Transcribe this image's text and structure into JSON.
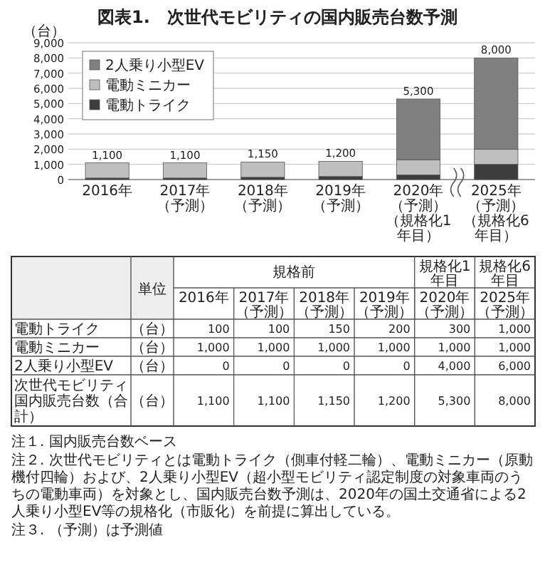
{
  "chart_data": [
    {
      "type": "bar",
      "stacked": true,
      "title": "図表1.　次世代モビリティの国内販売台数予測",
      "ylabel": "（台）",
      "categories": [
        "2016年",
        "2017年（予測）",
        "2018年（予測）",
        "2019年（予測）",
        "2020年（予測）（規格化1年目）",
        "2025年（予測）（規格化6年目）"
      ],
      "series": [
        {
          "name": "電動トライク",
          "color": "#3c3c3c",
          "values": [
            100,
            100,
            150,
            200,
            300,
            1000
          ]
        },
        {
          "name": "電動ミニカー",
          "color": "#bfbfbf",
          "values": [
            1000,
            1000,
            1000,
            1000,
            1000,
            1000
          ]
        },
        {
          "name": "2人乗り小型EV",
          "color": "#808080",
          "values": [
            0,
            0,
            0,
            0,
            4000,
            6000
          ]
        }
      ],
      "totals": [
        "1,100",
        "1,100",
        "1,150",
        "1,200",
        "5,300",
        "8,000"
      ],
      "ylim": [
        0,
        9000
      ],
      "yticks": [
        0,
        {
          "value": 1000,
          "label": "1,000"
        },
        {
          "value": 2000,
          "label": "2,000"
        },
        {
          "value": 3000,
          "label": "3,000"
        },
        {
          "value": 4000,
          "label": "4,000"
        },
        {
          "value": 5000,
          "label": "5,000"
        },
        {
          "value": 6000,
          "label": "6,000"
        },
        {
          "value": 7000,
          "label": "7,000"
        },
        {
          "value": 8000,
          "label": "8,000"
        },
        {
          "value": 9000,
          "label": "9,000"
        }
      ],
      "grid": "y",
      "legend": "top left"
    },
    {
      "type": "heatmap",
      "categories": [
        "2016年",
        "2017年（予測）",
        "2018年（予測）",
        "2019年（予測）",
        "2020年（予測）",
        "2025年（予測）"
      ],
      "y_categories": [
        "電動トライク",
        "電動ミニカー",
        "2人乗り小型EV",
        "次世代モビリティ国内販売台数（合計）"
      ],
      "y2_categories": [
        "（台）",
        "（台）",
        "（台）",
        "（台）"
      ],
      "cells": [
        [
          100,
          100,
          150,
          200,
          300,
          1000
        ],
        [
          1000,
          1000,
          1000,
          1000,
          1000,
          1000
        ],
        [
          0,
          0,
          0,
          0,
          4000,
          6000
        ],
        [
          1100,
          1100,
          1150,
          1200,
          5300,
          8000
        ]
      ],
      "cell_labels": [
        [
          "100",
          "100",
          "150",
          "200",
          "300",
          "1,000"
        ],
        [
          "1,000",
          "1,000",
          "1,000",
          "1,000",
          "1,000",
          "1,000"
        ],
        [
          "0",
          "0",
          "0",
          "0",
          "4,000",
          "6,000"
        ],
        [
          "1,100",
          "1,100",
          "1,150",
          "1,200",
          "5,300",
          "8,000"
        ]
      ],
      "annotations": [
        "規格前",
        "規格化1年目",
        "規格化6年目",
        "単位",
        "注１. 国内販売台数ベース",
        "注２. 次世代モビリティとは電動トライク（側車付軽二輪）、電動ミニカー（原動機付四輪）および、2人乗り小型EV（超小型モビリティ認定制度の対象車両のうちの電動車両）を対象とし、国内販売台数予測は、2020年の国土交通省による2人乗り小型EV等の規格化（市販化）を前提に算出している。",
        "注３. （予測）は予測値"
      ]
    }
  ]
}
